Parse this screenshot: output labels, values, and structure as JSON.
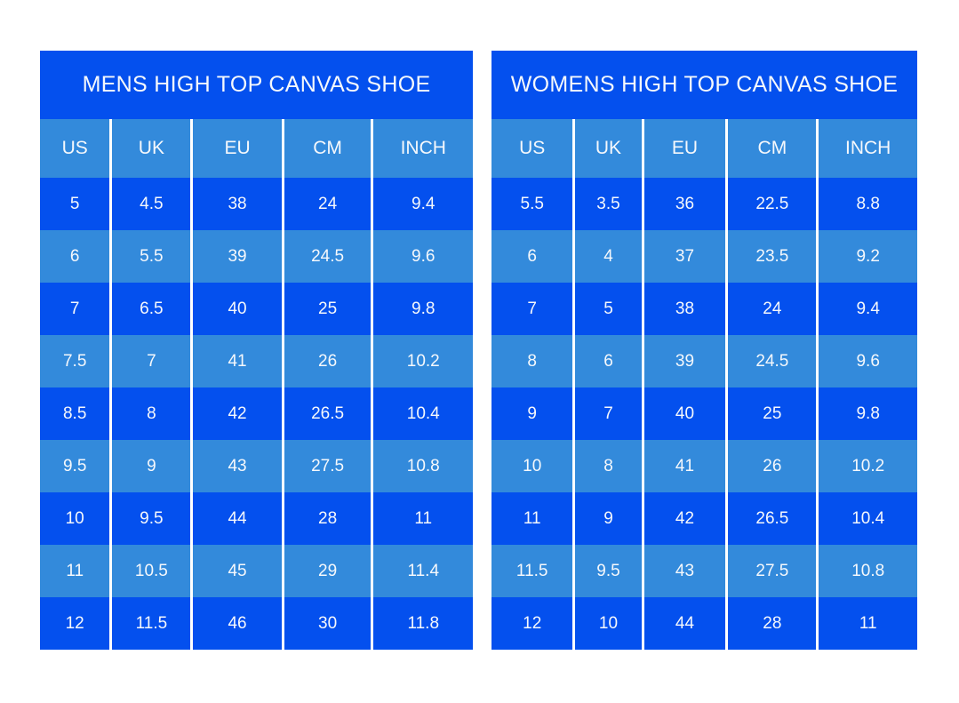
{
  "colors": {
    "row_dark": "#0450ee",
    "row_light": "#338adb",
    "text": "#f5f8fc",
    "separator": "#ffffff",
    "page_background": "#ffffff"
  },
  "chart_data": [
    {
      "type": "table",
      "title": "MENS HIGH TOP CANVAS SHOE",
      "columns": [
        "US",
        "UK",
        "EU",
        "CM",
        "INCH"
      ],
      "rows": [
        [
          "5",
          "4.5",
          "38",
          "24",
          "9.4"
        ],
        [
          "6",
          "5.5",
          "39",
          "24.5",
          "9.6"
        ],
        [
          "7",
          "6.5",
          "40",
          "25",
          "9.8"
        ],
        [
          "7.5",
          "7",
          "41",
          "26",
          "10.2"
        ],
        [
          "8.5",
          "8",
          "42",
          "26.5",
          "10.4"
        ],
        [
          "9.5",
          "9",
          "43",
          "27.5",
          "10.8"
        ],
        [
          "10",
          "9.5",
          "44",
          "28",
          "11"
        ],
        [
          "11",
          "10.5",
          "45",
          "29",
          "11.4"
        ],
        [
          "12",
          "11.5",
          "46",
          "30",
          "11.8"
        ]
      ]
    },
    {
      "type": "table",
      "title": "WOMENS HIGH TOP CANVAS SHOE",
      "columns": [
        "US",
        "UK",
        "EU",
        "CM",
        "INCH"
      ],
      "rows": [
        [
          "5.5",
          "3.5",
          "36",
          "22.5",
          "8.8"
        ],
        [
          "6",
          "4",
          "37",
          "23.5",
          "9.2"
        ],
        [
          "7",
          "5",
          "38",
          "24",
          "9.4"
        ],
        [
          "8",
          "6",
          "39",
          "24.5",
          "9.6"
        ],
        [
          "9",
          "7",
          "40",
          "25",
          "9.8"
        ],
        [
          "10",
          "8",
          "41",
          "26",
          "10.2"
        ],
        [
          "11",
          "9",
          "42",
          "26.5",
          "10.4"
        ],
        [
          "11.5",
          "9.5",
          "43",
          "27.5",
          "10.8"
        ],
        [
          "12",
          "10",
          "44",
          "28",
          "11"
        ]
      ]
    }
  ]
}
